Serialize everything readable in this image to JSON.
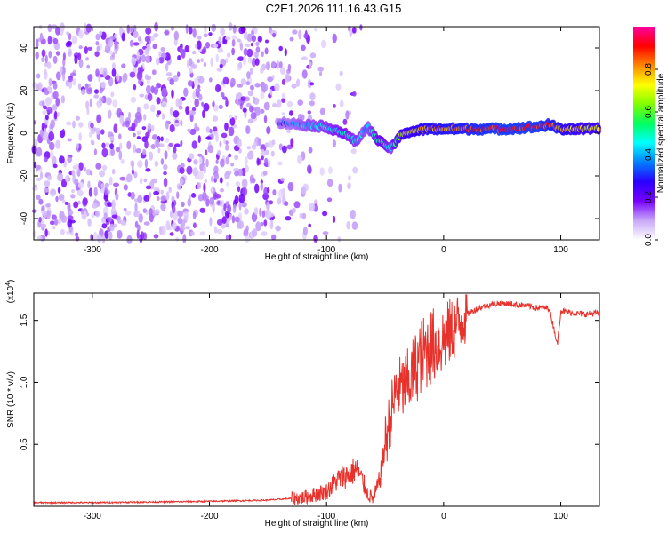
{
  "title": "C2E1.2026.111.16.43.G15",
  "chart_data": [
    {
      "type": "heatmap",
      "xlabel": "Height of straight line (km)",
      "ylabel": "Frequency (Hz)",
      "xlim": [
        -350,
        133
      ],
      "ylim": [
        -50,
        50
      ],
      "xticks": [
        -300,
        -200,
        -100,
        0,
        100
      ],
      "yticks": [
        -40,
        -20,
        0,
        20,
        40
      ],
      "colorbar": {
        "label": "Normalized spectral amplitude",
        "range": [
          0,
          1
        ],
        "ticks": [
          0.0,
          0.2,
          0.4,
          0.6,
          0.8
        ],
        "colormap": [
          "#ffffff",
          "#c8a8f8",
          "#7700ff",
          "#2a00ff",
          "#0080ff",
          "#00ffff",
          "#00ff60",
          "#80ff00",
          "#ffff00",
          "#ff8800",
          "#ff0000",
          "#ff00a0"
        ]
      },
      "signal_trace": {
        "heights_km": [
          -140,
          -120,
          -100,
          -85,
          -75,
          -65,
          -55,
          -45,
          -35,
          -25,
          -15,
          0,
          20,
          50,
          80,
          90,
          100,
          133
        ],
        "frequency_hz": [
          5,
          4,
          3,
          0,
          -4,
          3,
          -4,
          -7,
          0,
          1,
          2,
          2,
          2,
          2,
          3,
          4,
          2,
          2
        ],
        "amplitude": [
          0.3,
          0.4,
          0.45,
          0.5,
          0.45,
          0.4,
          0.55,
          0.45,
          0.7,
          0.75,
          0.8,
          0.82,
          0.85,
          0.9,
          0.9,
          0.85,
          0.8,
          0.7
        ]
      },
      "noise_region_km": [
        -350,
        -110
      ]
    },
    {
      "type": "line",
      "xlabel": "Height of straight line (km)",
      "ylabel": "SNR (10 * v/v)",
      "y_multiplier_label": "(x10",
      "y_multiplier_exp": "4",
      "xlim": [
        -350,
        133
      ],
      "ylim": [
        0,
        1.72
      ],
      "xticks": [
        -300,
        -200,
        -100,
        0,
        100
      ],
      "yticks": [
        0.5,
        1.0,
        1.5
      ],
      "ytick_labels": [
        "0.5",
        "1.0",
        "1.5"
      ],
      "color": "#e8312b",
      "series": [
        {
          "name": "SNR",
          "x": [
            -350,
            -300,
            -250,
            -200,
            -150,
            -120,
            -100,
            -90,
            -80,
            -75,
            -70,
            -65,
            -60,
            -55,
            -50,
            -45,
            -40,
            -35,
            -30,
            -25,
            -20,
            -15,
            -10,
            -5,
            0,
            5,
            10,
            15,
            20,
            30,
            40,
            50,
            60,
            70,
            80,
            90,
            95,
            97,
            100,
            110,
            120,
            133
          ],
          "y": [
            0.03,
            0.03,
            0.035,
            0.04,
            0.05,
            0.07,
            0.12,
            0.22,
            0.26,
            0.3,
            0.22,
            0.1,
            0.06,
            0.2,
            0.5,
            0.75,
            0.95,
            0.95,
            1.0,
            1.1,
            1.2,
            1.25,
            1.3,
            1.3,
            1.35,
            1.4,
            1.45,
            1.5,
            1.55,
            1.6,
            1.63,
            1.64,
            1.63,
            1.62,
            1.6,
            1.6,
            1.4,
            1.3,
            1.58,
            1.56,
            1.55,
            1.56
          ]
        }
      ]
    }
  ]
}
